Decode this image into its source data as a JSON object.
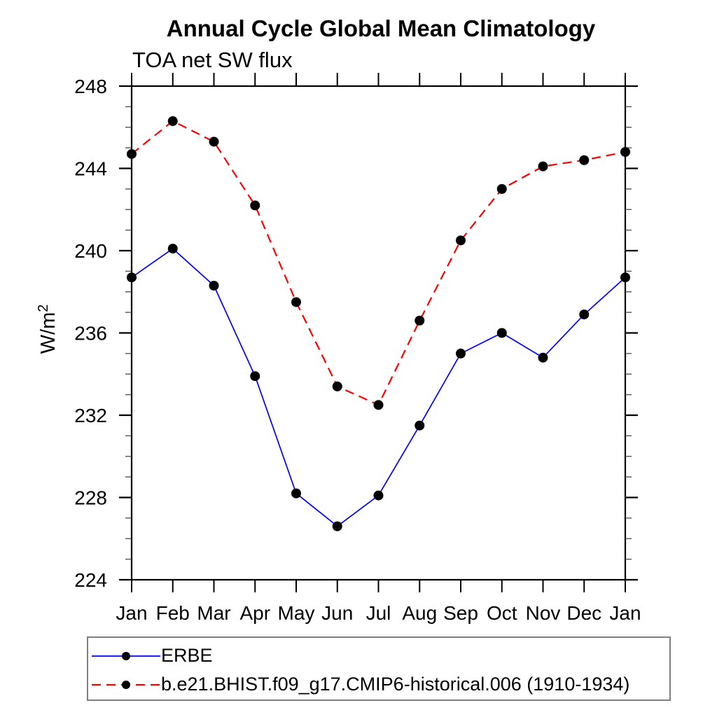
{
  "chart_data": {
    "type": "line",
    "title": "Annual Cycle Global Mean Climatology",
    "subtitle": "TOA net SW flux",
    "ylabel_base": "W/m",
    "ylabel_sup": "2",
    "x_categories": [
      "Jan",
      "Feb",
      "Mar",
      "Apr",
      "May",
      "Jun",
      "Jul",
      "Aug",
      "Sep",
      "Oct",
      "Nov",
      "Dec",
      "Jan"
    ],
    "ylim": [
      224,
      248
    ],
    "y_major_ticks": [
      224,
      228,
      232,
      236,
      240,
      244,
      248
    ],
    "y_minor_step": 1,
    "grid": false,
    "legend_position": "bottom-left box below plot",
    "axis_color": "#000000",
    "marker_color": "#000000",
    "series": [
      {
        "name": "ERBE",
        "color": "#0000ff",
        "style": "solid",
        "marker": "filled-circle",
        "values": [
          238.7,
          240.1,
          238.3,
          233.9,
          228.2,
          226.6,
          228.1,
          231.5,
          235.0,
          236.0,
          234.8,
          236.9,
          238.7
        ]
      },
      {
        "name": "b.e21.BHIST.f09_g17.CMIP6-historical.006 (1910-1934)",
        "color": "#ff0000",
        "style": "dashed",
        "marker": "filled-circle",
        "values": [
          244.7,
          246.3,
          245.3,
          242.2,
          237.5,
          233.4,
          232.5,
          236.6,
          240.5,
          243.0,
          244.1,
          244.4,
          244.8
        ]
      }
    ]
  }
}
